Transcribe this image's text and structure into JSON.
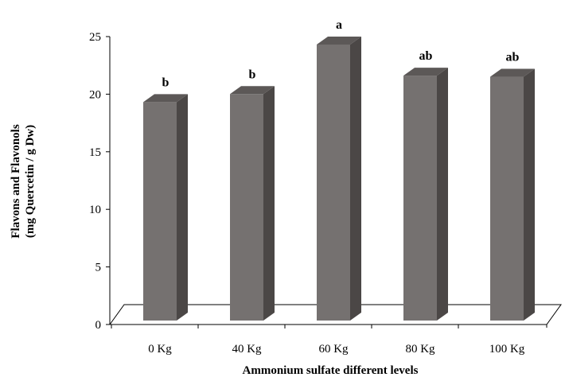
{
  "chart_data": {
    "type": "bar",
    "categories": [
      "0 Kg",
      "40 Kg",
      "60 Kg",
      "80 Kg",
      "100 Kg"
    ],
    "values": [
      20,
      20.7,
      25,
      22.3,
      22.2
    ],
    "data_labels": [
      "b",
      "b",
      "a",
      "ab",
      "ab"
    ],
    "xlabel": "Ammonium sulfate different levels",
    "ylabel_line1": "Flavons and Flavonols",
    "ylabel_line2": "(mg Quercetin / g Dw)",
    "ylim": [
      0,
      25
    ],
    "yticks": [
      0,
      5,
      10,
      15,
      20,
      25
    ],
    "grid": false,
    "legend": "none",
    "style": "3d-column",
    "colors": {
      "bar_front": "#757170",
      "bar_side": "#4b4746",
      "bar_top": "#5c5857",
      "floor": "#ffffff",
      "axis": "#000000"
    }
  }
}
